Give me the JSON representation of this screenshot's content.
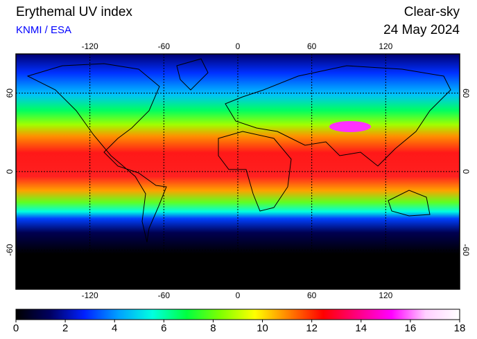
{
  "header": {
    "title": "Erythemal UV index",
    "source": "KNMI / ESA",
    "mode": "Clear-sky",
    "date": "24 May 2024"
  },
  "map": {
    "lon_range": [
      -180,
      180
    ],
    "lat_range": [
      -90,
      90
    ],
    "lon_ticks": [
      -120,
      -60,
      0,
      60,
      120
    ],
    "lat_ticks": [
      60,
      0,
      -60
    ]
  },
  "colorbar": {
    "range": [
      0,
      18
    ],
    "ticks": [
      0,
      2,
      4,
      6,
      8,
      10,
      12,
      14,
      16,
      18
    ],
    "colors": [
      "#000000",
      "#000060",
      "#0020ff",
      "#00a0ff",
      "#00ffe0",
      "#00ff40",
      "#80ff00",
      "#ffff00",
      "#ff8000",
      "#ff0000",
      "#ff0080",
      "#ff00ff",
      "#ffd0ff",
      "#ffffff"
    ]
  }
}
